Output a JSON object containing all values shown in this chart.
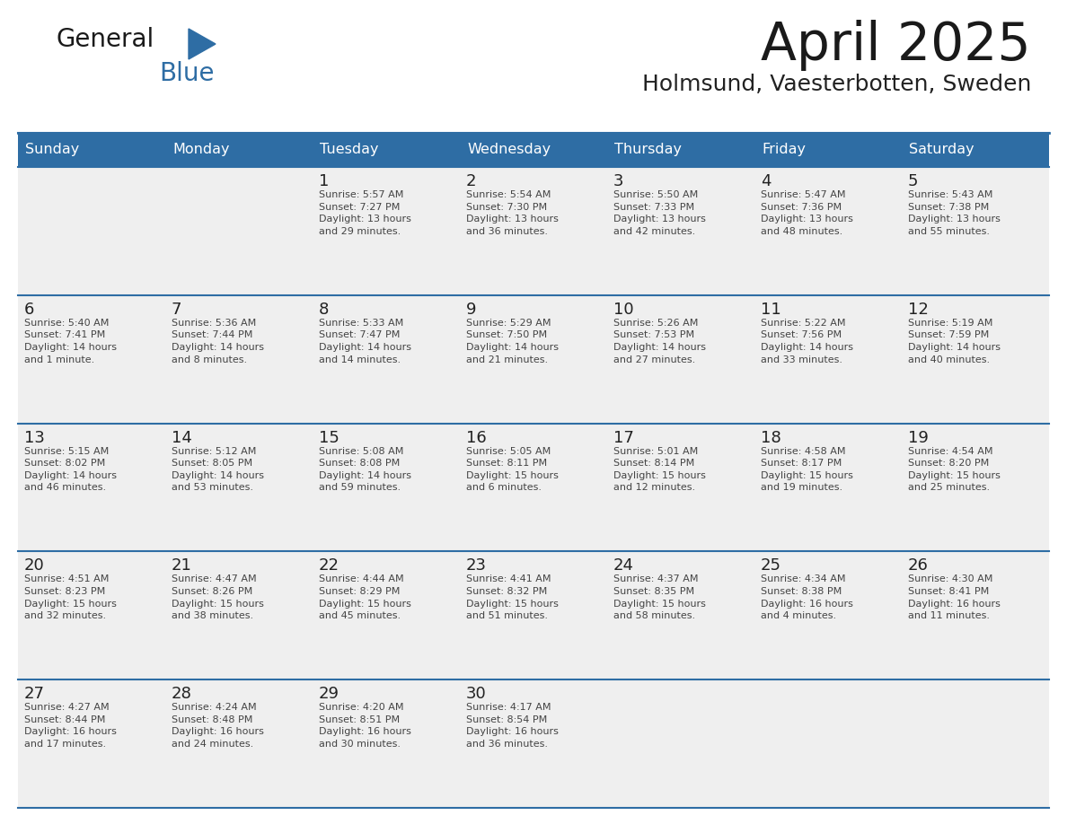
{
  "title": "April 2025",
  "subtitle": "Holmsund, Vaesterbotten, Sweden",
  "days_of_week": [
    "Sunday",
    "Monday",
    "Tuesday",
    "Wednesday",
    "Thursday",
    "Friday",
    "Saturday"
  ],
  "header_bg_color": "#2E6DA4",
  "header_text_color": "#FFFFFF",
  "cell_bg_color": "#EFEFEF",
  "day_number_color": "#222222",
  "text_color": "#444444",
  "line_color": "#2E6DA4",
  "title_color": "#1a1a1a",
  "subtitle_color": "#222222",
  "logo_general_color": "#1a1a1a",
  "logo_blue_color": "#2E6DA4",
  "logo_triangle_color": "#2E6DA4",
  "weeks": [
    [
      {
        "day": "",
        "info": ""
      },
      {
        "day": "",
        "info": ""
      },
      {
        "day": "1",
        "info": "Sunrise: 5:57 AM\nSunset: 7:27 PM\nDaylight: 13 hours\nand 29 minutes."
      },
      {
        "day": "2",
        "info": "Sunrise: 5:54 AM\nSunset: 7:30 PM\nDaylight: 13 hours\nand 36 minutes."
      },
      {
        "day": "3",
        "info": "Sunrise: 5:50 AM\nSunset: 7:33 PM\nDaylight: 13 hours\nand 42 minutes."
      },
      {
        "day": "4",
        "info": "Sunrise: 5:47 AM\nSunset: 7:36 PM\nDaylight: 13 hours\nand 48 minutes."
      },
      {
        "day": "5",
        "info": "Sunrise: 5:43 AM\nSunset: 7:38 PM\nDaylight: 13 hours\nand 55 minutes."
      }
    ],
    [
      {
        "day": "6",
        "info": "Sunrise: 5:40 AM\nSunset: 7:41 PM\nDaylight: 14 hours\nand 1 minute."
      },
      {
        "day": "7",
        "info": "Sunrise: 5:36 AM\nSunset: 7:44 PM\nDaylight: 14 hours\nand 8 minutes."
      },
      {
        "day": "8",
        "info": "Sunrise: 5:33 AM\nSunset: 7:47 PM\nDaylight: 14 hours\nand 14 minutes."
      },
      {
        "day": "9",
        "info": "Sunrise: 5:29 AM\nSunset: 7:50 PM\nDaylight: 14 hours\nand 21 minutes."
      },
      {
        "day": "10",
        "info": "Sunrise: 5:26 AM\nSunset: 7:53 PM\nDaylight: 14 hours\nand 27 minutes."
      },
      {
        "day": "11",
        "info": "Sunrise: 5:22 AM\nSunset: 7:56 PM\nDaylight: 14 hours\nand 33 minutes."
      },
      {
        "day": "12",
        "info": "Sunrise: 5:19 AM\nSunset: 7:59 PM\nDaylight: 14 hours\nand 40 minutes."
      }
    ],
    [
      {
        "day": "13",
        "info": "Sunrise: 5:15 AM\nSunset: 8:02 PM\nDaylight: 14 hours\nand 46 minutes."
      },
      {
        "day": "14",
        "info": "Sunrise: 5:12 AM\nSunset: 8:05 PM\nDaylight: 14 hours\nand 53 minutes."
      },
      {
        "day": "15",
        "info": "Sunrise: 5:08 AM\nSunset: 8:08 PM\nDaylight: 14 hours\nand 59 minutes."
      },
      {
        "day": "16",
        "info": "Sunrise: 5:05 AM\nSunset: 8:11 PM\nDaylight: 15 hours\nand 6 minutes."
      },
      {
        "day": "17",
        "info": "Sunrise: 5:01 AM\nSunset: 8:14 PM\nDaylight: 15 hours\nand 12 minutes."
      },
      {
        "day": "18",
        "info": "Sunrise: 4:58 AM\nSunset: 8:17 PM\nDaylight: 15 hours\nand 19 minutes."
      },
      {
        "day": "19",
        "info": "Sunrise: 4:54 AM\nSunset: 8:20 PM\nDaylight: 15 hours\nand 25 minutes."
      }
    ],
    [
      {
        "day": "20",
        "info": "Sunrise: 4:51 AM\nSunset: 8:23 PM\nDaylight: 15 hours\nand 32 minutes."
      },
      {
        "day": "21",
        "info": "Sunrise: 4:47 AM\nSunset: 8:26 PM\nDaylight: 15 hours\nand 38 minutes."
      },
      {
        "day": "22",
        "info": "Sunrise: 4:44 AM\nSunset: 8:29 PM\nDaylight: 15 hours\nand 45 minutes."
      },
      {
        "day": "23",
        "info": "Sunrise: 4:41 AM\nSunset: 8:32 PM\nDaylight: 15 hours\nand 51 minutes."
      },
      {
        "day": "24",
        "info": "Sunrise: 4:37 AM\nSunset: 8:35 PM\nDaylight: 15 hours\nand 58 minutes."
      },
      {
        "day": "25",
        "info": "Sunrise: 4:34 AM\nSunset: 8:38 PM\nDaylight: 16 hours\nand 4 minutes."
      },
      {
        "day": "26",
        "info": "Sunrise: 4:30 AM\nSunset: 8:41 PM\nDaylight: 16 hours\nand 11 minutes."
      }
    ],
    [
      {
        "day": "27",
        "info": "Sunrise: 4:27 AM\nSunset: 8:44 PM\nDaylight: 16 hours\nand 17 minutes."
      },
      {
        "day": "28",
        "info": "Sunrise: 4:24 AM\nSunset: 8:48 PM\nDaylight: 16 hours\nand 24 minutes."
      },
      {
        "day": "29",
        "info": "Sunrise: 4:20 AM\nSunset: 8:51 PM\nDaylight: 16 hours\nand 30 minutes."
      },
      {
        "day": "30",
        "info": "Sunrise: 4:17 AM\nSunset: 8:54 PM\nDaylight: 16 hours\nand 36 minutes."
      },
      {
        "day": "",
        "info": ""
      },
      {
        "day": "",
        "info": ""
      },
      {
        "day": "",
        "info": ""
      }
    ]
  ]
}
